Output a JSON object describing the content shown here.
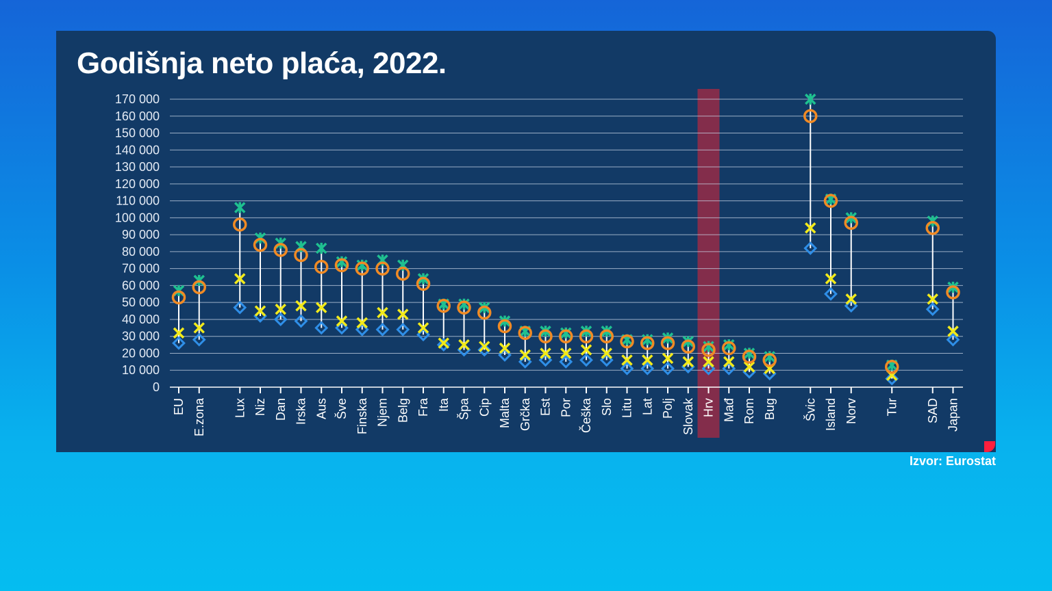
{
  "title": "Godišnja neto plaća, 2022.",
  "source": "Izvor: Eurostat",
  "colors": {
    "green": "#1fc090",
    "orange": "#f08a24",
    "yellow": "#f2ea1a",
    "blue": "#2f8fe8",
    "highlight": "#8a2c4a"
  },
  "chart_data": {
    "type": "scatter",
    "title": "Godišnja neto plaća, 2022.",
    "ylim": [
      0,
      170000
    ],
    "yticks": [
      0,
      10000,
      20000,
      30000,
      40000,
      50000,
      60000,
      70000,
      80000,
      90000,
      100000,
      110000,
      120000,
      130000,
      140000,
      150000,
      160000,
      170000
    ],
    "ytick_labels": [
      "0",
      "10 000",
      "20 000",
      "30 000",
      "40 000",
      "50 000",
      "60 000",
      "70 000",
      "80 000",
      "90 000",
      "100 000",
      "110 000",
      "120 000",
      "130 000",
      "140 000",
      "150 000",
      "160 000",
      "170 000"
    ],
    "highlight": "Hrv",
    "categories": [
      "EU",
      "E.zona",
      "Lux",
      "Niz",
      "Dan",
      "Irska",
      "Aus",
      "Šve",
      "Finska",
      "Njem",
      "Belg",
      "Fra",
      "Ita",
      "Špa",
      "Cip",
      "Malta",
      "Grčka",
      "Est",
      "Por",
      "Češka",
      "Slo",
      "Litu",
      "Lat",
      "Polj",
      "Slovak",
      "Hrv",
      "Mađ",
      "Rom",
      "Bug",
      "Švic",
      "Island",
      "Norv",
      "Tur",
      "SAD",
      "Japan"
    ],
    "slots": [
      0,
      1,
      3,
      4,
      5,
      6,
      7,
      8,
      9,
      10,
      11,
      12,
      13,
      14,
      15,
      16,
      17,
      18,
      19,
      20,
      21,
      22,
      23,
      24,
      25,
      26,
      27,
      28,
      29,
      31,
      32,
      33,
      35,
      37,
      38
    ],
    "series": [
      {
        "name": "green-asterisk",
        "marker": "asterisk",
        "color": "#1fc090",
        "values": [
          57000,
          63000,
          106000,
          88000,
          85000,
          83000,
          82000,
          74000,
          72000,
          75000,
          72000,
          64000,
          49000,
          49000,
          47000,
          39000,
          33000,
          33000,
          32000,
          33000,
          33000,
          28000,
          28000,
          29000,
          27000,
          24000,
          25000,
          20000,
          18000,
          170000,
          111000,
          100000,
          13000,
          98000,
          59000
        ]
      },
      {
        "name": "orange-circle",
        "marker": "circle",
        "color": "#f08a24",
        "values": [
          53000,
          59000,
          96000,
          84000,
          81000,
          78000,
          71000,
          72000,
          70000,
          70000,
          67000,
          61000,
          48000,
          47000,
          44000,
          36000,
          32000,
          30000,
          30000,
          30000,
          30000,
          27000,
          26000,
          26000,
          24000,
          22000,
          23000,
          18000,
          16000,
          160000,
          110000,
          97000,
          12000,
          94000,
          56000
        ]
      },
      {
        "name": "yellow-cross",
        "marker": "cross",
        "color": "#f2ea1a",
        "values": [
          32000,
          35000,
          64000,
          45000,
          46000,
          48000,
          47000,
          39000,
          38000,
          44000,
          43000,
          35000,
          26000,
          25000,
          24000,
          23000,
          19000,
          20000,
          20000,
          22000,
          20000,
          16000,
          16000,
          17000,
          15000,
          15000,
          15000,
          12000,
          11000,
          94000,
          64000,
          52000,
          7000,
          52000,
          33000
        ]
      },
      {
        "name": "blue-diamond",
        "marker": "diamond",
        "color": "#2f8fe8",
        "values": [
          26000,
          28000,
          47000,
          42000,
          40000,
          39000,
          35000,
          35000,
          34000,
          34000,
          34000,
          31000,
          25000,
          22000,
          22000,
          19000,
          15000,
          16000,
          15000,
          16000,
          16000,
          11000,
          11000,
          11000,
          12000,
          11000,
          11000,
          9000,
          8000,
          82000,
          55000,
          48000,
          5000,
          46000,
          28000
        ]
      }
    ]
  }
}
